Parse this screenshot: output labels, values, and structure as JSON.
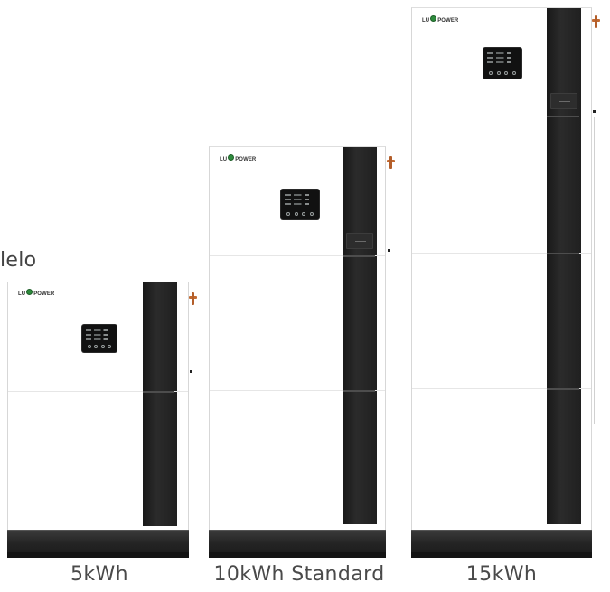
{
  "edge_label": "lelo",
  "products": [
    {
      "capacity_label": "5kWh",
      "brand_logo": "LUXPOWER"
    },
    {
      "capacity_label": "10kWh Standard",
      "brand_logo": "LUXPOWER"
    },
    {
      "capacity_label": "15kWh",
      "brand_logo": "LUXPOWER"
    }
  ],
  "colors": {
    "cabinet_body": "#ffffff",
    "stripe_dark": "#202020",
    "base_dark": "#242424",
    "connector_copper": "#c26a32",
    "logo_mark_green": "#2e8b3d",
    "caption_text": "#4a4a4a"
  }
}
